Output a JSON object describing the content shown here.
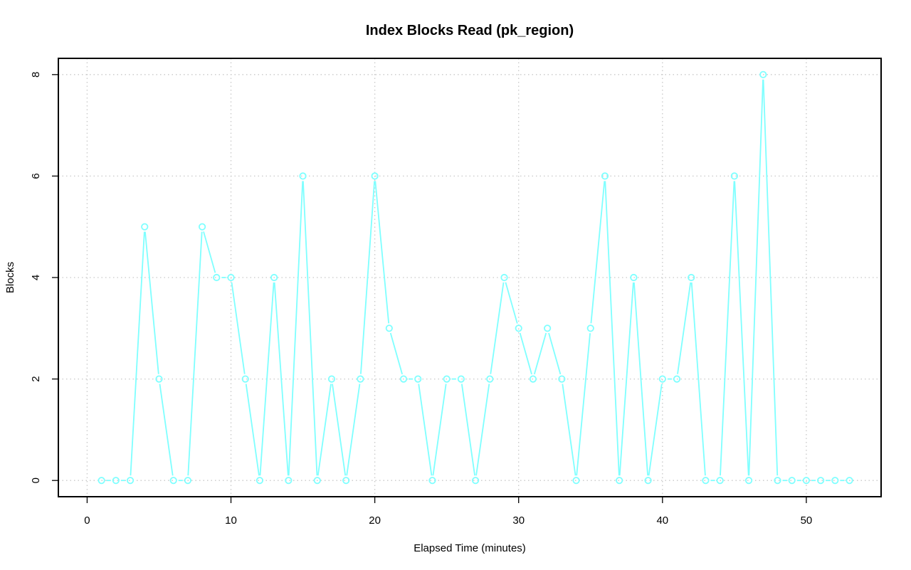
{
  "chart_data": {
    "type": "line",
    "title": "Index Blocks Read (pk_region)",
    "xlabel": "Elapsed Time (minutes)",
    "ylabel": "Blocks",
    "xlim": [
      -2,
      55.2
    ],
    "ylim": [
      -0.32,
      8.32
    ],
    "xticks": [
      0,
      10,
      20,
      30,
      40,
      50
    ],
    "yticks": [
      0,
      2,
      4,
      6,
      8
    ],
    "grid": true,
    "series": [
      {
        "color": "#7fffff",
        "x": [
          1,
          2,
          3,
          4,
          5,
          6,
          7,
          8,
          9,
          10,
          11,
          12,
          13,
          14,
          15,
          16,
          17,
          18,
          19,
          20,
          21,
          22,
          23,
          24,
          25,
          26,
          27,
          28,
          29,
          30,
          31,
          32,
          33,
          34,
          35,
          36,
          37,
          38,
          39,
          40,
          41,
          42,
          43,
          44,
          45,
          46,
          47,
          48,
          49,
          50,
          51,
          52,
          53
        ],
        "y": [
          0,
          0,
          0,
          5,
          2,
          0,
          0,
          5,
          4,
          4,
          2,
          0,
          4,
          0,
          6,
          0,
          2,
          0,
          2,
          6,
          3,
          2,
          2,
          0,
          2,
          2,
          0,
          2,
          4,
          3,
          2,
          3,
          2,
          0,
          3,
          6,
          0,
          4,
          0,
          2,
          2,
          4,
          0,
          0,
          6,
          0,
          8,
          0,
          0,
          0,
          0,
          0,
          0
        ]
      }
    ]
  }
}
